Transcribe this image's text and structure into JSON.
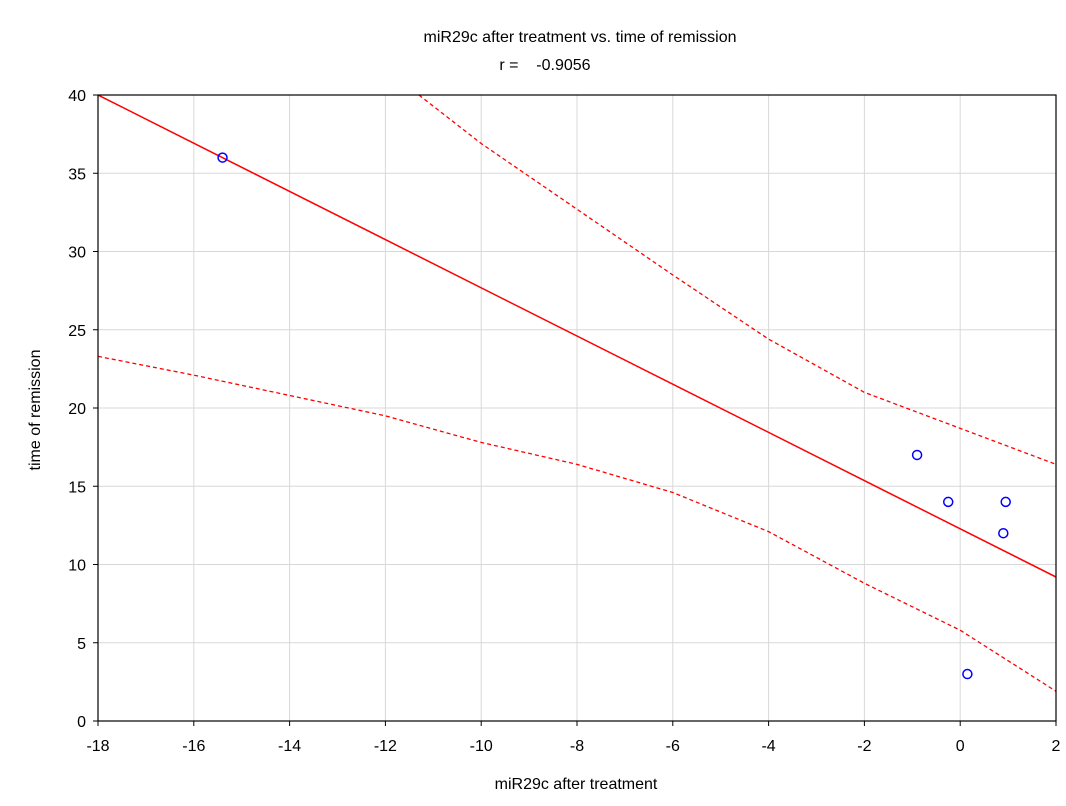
{
  "chart_data": {
    "type": "scatter",
    "title": "miR29c after treatment vs. time of remission",
    "subtitle": "r =    -0.9056",
    "xlabel": "miR29c after treatment",
    "ylabel": "time of remission",
    "xlim": [
      -18,
      2
    ],
    "ylim": [
      0,
      40
    ],
    "xticks": [
      -18,
      -16,
      -14,
      -12,
      -10,
      -8,
      -6,
      -4,
      -2,
      0,
      2
    ],
    "yticks": [
      0,
      5,
      10,
      15,
      20,
      25,
      30,
      35,
      40
    ],
    "grid": true,
    "points": [
      {
        "x": -15.4,
        "y": 36
      },
      {
        "x": -0.9,
        "y": 17
      },
      {
        "x": -0.25,
        "y": 14
      },
      {
        "x": 0.9,
        "y": 12
      },
      {
        "x": 0.95,
        "y": 14
      },
      {
        "x": 0.15,
        "y": 3
      }
    ],
    "regression_line": {
      "x": [
        -18,
        2
      ],
      "y": [
        40,
        9.2
      ]
    },
    "confidence_upper": {
      "x": [
        -11.3,
        -10,
        -8,
        -6,
        -4,
        -2,
        0,
        2
      ],
      "y": [
        40,
        36.9,
        32.7,
        28.5,
        24.4,
        21.0,
        18.7,
        16.4
      ]
    },
    "confidence_lower": {
      "x": [
        -18,
        -16,
        -14,
        -12,
        -10,
        -8,
        -6,
        -4,
        -2,
        0,
        2
      ],
      "y": [
        23.3,
        22.1,
        20.8,
        19.5,
        17.8,
        16.4,
        14.6,
        12.1,
        8.8,
        5.8,
        1.9
      ]
    },
    "colors": {
      "points": "#0000ff",
      "fit": "#ff0000",
      "grid": "#d8d8d8",
      "frame": "#000000"
    }
  }
}
